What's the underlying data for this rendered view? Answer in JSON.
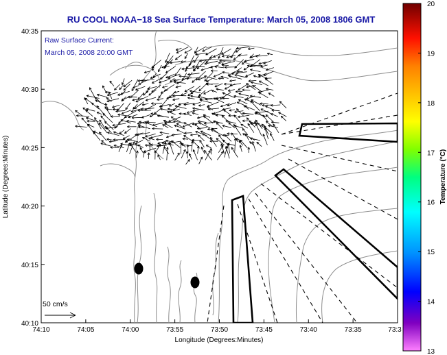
{
  "title": "RU COOL  NOAA−18  Sea Surface Temperature:  March 05, 2008 1806 GMT",
  "annotation": {
    "line1": "Raw Surface Current:",
    "line2": "March 05, 2008 20:00 GMT"
  },
  "scale_label": "50 cm/s",
  "x_axis": {
    "label": "Longitude (Degrees:Minutes)",
    "ticks": [
      "74:10",
      "74:05",
      "74:00",
      "73:55",
      "73:50",
      "73:45",
      "73:40",
      "73:35",
      "73:3"
    ]
  },
  "y_axis": {
    "label": "Latitude (Degrees:Minutes)",
    "ticks": [
      "40:35",
      "40:30",
      "40:25",
      "40:20",
      "40:15",
      "40:10"
    ]
  },
  "colorbar": {
    "label": "Temperature (°C)",
    "ticks": [
      "20",
      "19",
      "18",
      "17",
      "16",
      "15",
      "14",
      "13"
    ],
    "range": [
      13,
      20
    ],
    "colors": [
      "#ff80ff",
      "#8000c0",
      "#0000ff",
      "#00a0ff",
      "#00ffff",
      "#00ff80",
      "#80ff00",
      "#ffff00",
      "#ffc000",
      "#ff8000",
      "#ff2000",
      "#c00000",
      "#700000"
    ]
  },
  "colors": {
    "title": "#1a1aa6",
    "contour": "#8c8c8c",
    "arrows": "#000000"
  }
}
